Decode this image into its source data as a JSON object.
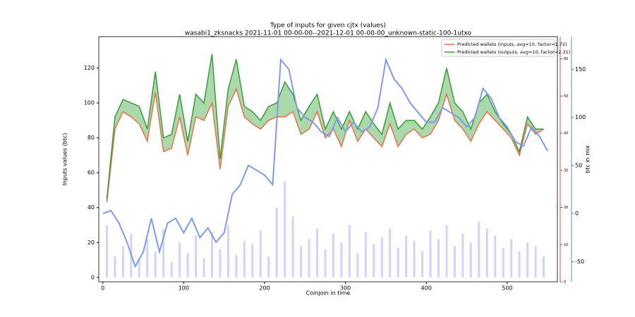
{
  "chart_data": {
    "type": "line",
    "title": "Type of inputs for given cjtx (values)",
    "subtitle": "wasabi1_zksnacks 2021-11-01 00-00-00--2021-12-01 00-00-00_unknown-static-100-1utxo",
    "x_label": "Coinjoin in time",
    "y_label": "Inputs values (btc)",
    "y3_label": "btc in mix",
    "xlim": [
      -5,
      562
    ],
    "xticks": [
      0,
      100,
      200,
      300,
      400,
      500
    ],
    "ylim": [
      -2.5,
      138
    ],
    "yticks": [
      0,
      20,
      40,
      60,
      80,
      100,
      120
    ],
    "y2lim": [
      0,
      66
    ],
    "y2ticks": [
      0,
      10,
      20,
      30,
      40,
      50,
      60
    ],
    "y2color": "#d62728",
    "y3lim": [
      -71,
      184
    ],
    "y3ticks": [
      -50,
      0,
      50,
      100,
      150
    ],
    "y3color": "#4169e1",
    "legend": "upper right",
    "fill_color": "#2ca02c",
    "x": [
      5,
      15,
      25,
      35,
      45,
      55,
      65,
      75,
      85,
      95,
      105,
      115,
      125,
      135,
      145,
      155,
      165,
      175,
      185,
      195,
      205,
      215,
      225,
      235,
      245,
      255,
      265,
      275,
      285,
      295,
      305,
      315,
      325,
      335,
      345,
      355,
      365,
      375,
      385,
      395,
      405,
      415,
      425,
      435,
      445,
      455,
      465,
      475,
      485,
      495,
      505,
      515,
      525,
      535,
      545
    ],
    "series": [
      {
        "name": "Predicted wallets (inputs, avg=10, factor=1.72)",
        "color": "#e8704a",
        "values": [
          43,
          85,
          95,
          92,
          88,
          78,
          106,
          72,
          74,
          92,
          70,
          92,
          90,
          100,
          62,
          98,
          108,
          92,
          88,
          85,
          90,
          92,
          92,
          95,
          82,
          85,
          95,
          80,
          85,
          75,
          90,
          78,
          85,
          80,
          75,
          88,
          75,
          82,
          85,
          80,
          82,
          90,
          105,
          90,
          85,
          78,
          88,
          95,
          90,
          85,
          80,
          70,
          88,
          82,
          85
        ]
      },
      {
        "name": "Predicted wallets (outputs, avg=10, factor=2.31)",
        "color": "#3a9a3a",
        "values": [
          45,
          92,
          102,
          100,
          98,
          85,
          118,
          80,
          82,
          105,
          78,
          105,
          100,
          128,
          68,
          108,
          125,
          98,
          95,
          90,
          98,
          100,
          112,
          105,
          90,
          98,
          105,
          85,
          95,
          85,
          95,
          85,
          95,
          88,
          82,
          100,
          85,
          90,
          90,
          85,
          92,
          100,
          120,
          100,
          95,
          85,
          100,
          105,
          95,
          88,
          82,
          72,
          92,
          85,
          85
        ]
      }
    ],
    "mix_x": [
      0,
      10,
      20,
      30,
      40,
      50,
      60,
      70,
      80,
      90,
      100,
      110,
      120,
      130,
      140,
      150,
      160,
      170,
      180,
      190,
      200,
      210,
      220,
      230,
      240,
      250,
      260,
      270,
      280,
      290,
      300,
      310,
      320,
      330,
      340,
      350,
      360,
      370,
      380,
      390,
      400,
      410,
      420,
      430,
      440,
      450,
      460,
      470,
      480,
      490,
      500,
      510,
      520,
      530,
      540,
      550
    ],
    "mix": {
      "color": "#7f9be8",
      "values": [
        0,
        3,
        -10,
        -30,
        -55,
        -40,
        -5,
        -40,
        -10,
        -5,
        -20,
        -5,
        -25,
        -15,
        -30,
        -20,
        20,
        30,
        50,
        45,
        40,
        30,
        160,
        150,
        110,
        100,
        95,
        85,
        80,
        100,
        85,
        95,
        85,
        90,
        110,
        160,
        140,
        130,
        115,
        105,
        95,
        95,
        110,
        105,
        100,
        90,
        100,
        130,
        120,
        100,
        90,
        75,
        70,
        90,
        80,
        65
      ]
    },
    "bars": {
      "color": "#b3b8f5",
      "values": [
        30,
        12,
        18,
        25,
        10,
        22,
        15,
        28,
        9,
        20,
        14,
        24,
        11,
        26,
        16,
        30,
        13,
        21,
        19,
        27,
        12,
        40,
        55,
        35,
        18,
        22,
        28,
        16,
        25,
        20,
        30,
        14,
        26,
        19,
        23,
        28,
        17,
        24,
        21,
        15,
        27,
        22,
        30,
        18,
        25,
        20,
        32,
        28,
        24,
        17,
        22,
        15,
        20,
        18,
        12
      ]
    }
  }
}
